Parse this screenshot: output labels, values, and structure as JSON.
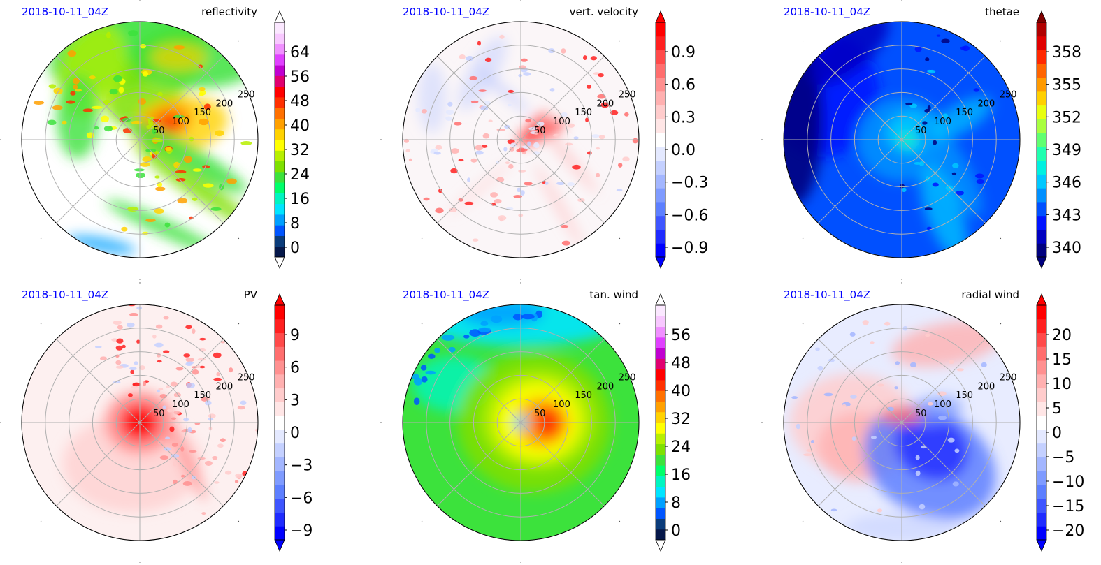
{
  "panels": [
    {
      "date_label": "2018-10-11_04Z",
      "title": "reflectivity",
      "colorbar": {
        "colors": [
          "#06184a",
          "#0b3c7a",
          "#0055ff",
          "#00a0ff",
          "#00e5ff",
          "#00f5c0",
          "#00ff6a",
          "#3ce23c",
          "#7ee000",
          "#b7ef00",
          "#ffff00",
          "#ffd200",
          "#ffa000",
          "#ff7000",
          "#ff3000",
          "#ff0000",
          "#e00070",
          "#c000d0",
          "#e040ff",
          "#f090ff",
          "#f8c8ff",
          "#fbe8ff"
        ],
        "ticks": [
          "0",
          "8",
          "16",
          "24",
          "32",
          "40",
          "48",
          "56",
          "64"
        ],
        "extend_min": true,
        "extend_max": true,
        "min_color": "#ffffff",
        "max_color": "#ffffff"
      },
      "field": {
        "base": "#ffffff",
        "clip_ne": true,
        "blobs": [
          {
            "a": 100,
            "r": 135,
            "rx": 110,
            "ry": 60,
            "rot": 20,
            "color": "#3ce23c",
            "op": 0.9
          },
          {
            "a": 75,
            "r": 95,
            "rx": 90,
            "ry": 45,
            "rot": 45,
            "color": "#7ee000",
            "op": 0.85
          },
          {
            "a": 55,
            "r": 145,
            "rx": 95,
            "ry": 45,
            "rot": 0,
            "color": "#3ce23c",
            "op": 0.85
          },
          {
            "a": 125,
            "r": 120,
            "rx": 70,
            "ry": 45,
            "rot": 70,
            "color": "#b7ef00",
            "op": 0.75
          },
          {
            "a": 20,
            "r": 60,
            "rx": 70,
            "ry": 40,
            "rot": 10,
            "color": "#ffd200",
            "op": 0.8
          },
          {
            "a": 35,
            "r": 45,
            "rx": 40,
            "ry": 25,
            "rot": 20,
            "color": "#ffa000",
            "op": 0.85
          },
          {
            "a": 30,
            "r": 50,
            "rx": 20,
            "ry": 14,
            "rot": 0,
            "color": "#ff3000",
            "op": 0.9
          },
          {
            "a": -20,
            "r": 70,
            "rx": 100,
            "ry": 18,
            "rot": -30,
            "color": "#3ce23c",
            "op": 0.85
          },
          {
            "a": -40,
            "r": 100,
            "rx": 100,
            "ry": 16,
            "rot": -35,
            "color": "#7ee000",
            "op": 0.8
          },
          {
            "a": -75,
            "r": 130,
            "rx": 90,
            "ry": 12,
            "rot": -25,
            "color": "#3ce23c",
            "op": 0.8
          },
          {
            "a": -110,
            "r": 160,
            "rx": 50,
            "ry": 10,
            "rot": -10,
            "color": "#00a0ff",
            "op": 0.8
          },
          {
            "a": 160,
            "r": 95,
            "rx": 30,
            "ry": 60,
            "rot": 0,
            "color": "#3ce23c",
            "op": 0.8
          },
          {
            "a": 65,
            "r": 130,
            "rx": 40,
            "ry": 20,
            "rot": 0,
            "color": "#ffd200",
            "op": 0.7
          }
        ],
        "speckle": {
          "count": 90,
          "rmin": 20,
          "rmax": 165,
          "amin": -100,
          "amax": 175,
          "colors": [
            "#ffd200",
            "#ffa000",
            "#ff3000",
            "#b7ef00",
            "#3ce23c",
            "#ffff00"
          ],
          "size": 5
        }
      }
    },
    {
      "date_label": "2018-10-11_04Z",
      "title": "vert. velocity",
      "colorbar": {
        "colors": [
          "#0000ff",
          "#1f2bff",
          "#3e55ff",
          "#5d7fff",
          "#7f9bff",
          "#a3b6ff",
          "#c4d0ff",
          "#e4e9ff",
          "#ffffff",
          "#ffe6e6",
          "#ffcccc",
          "#ffb0b0",
          "#ff9090",
          "#ff6e6e",
          "#ff4a4a",
          "#ff2020",
          "#ff0000"
        ],
        "ticks": [
          "−0.9",
          "−0.6",
          "−0.3",
          "0.0",
          "0.3",
          "0.6",
          "0.9"
        ],
        "extend_min": true,
        "extend_max": true,
        "min_color": "#0000ff",
        "max_color": "#ff0000"
      },
      "field": {
        "base": "#fbf6f8",
        "clip_ne": false,
        "blobs": [
          {
            "a": 120,
            "r": 110,
            "rx": 60,
            "ry": 20,
            "rot": 60,
            "color": "#c4d0ff",
            "op": 0.55
          },
          {
            "a": 155,
            "r": 140,
            "rx": 20,
            "ry": 50,
            "rot": 0,
            "color": "#c4d0ff",
            "op": 0.5
          },
          {
            "a": 20,
            "r": 30,
            "rx": 35,
            "ry": 10,
            "rot": 20,
            "color": "#ff0000",
            "op": 0.85
          },
          {
            "a": 45,
            "r": 35,
            "rx": 20,
            "ry": 8,
            "rot": 40,
            "color": "#ff4a4a",
            "op": 0.8
          },
          {
            "a": -20,
            "r": 70,
            "rx": 70,
            "ry": 6,
            "rot": -50,
            "color": "#ffb0b0",
            "op": 0.6
          },
          {
            "a": -60,
            "r": 110,
            "rx": 70,
            "ry": 6,
            "rot": -60,
            "color": "#ffb0b0",
            "op": 0.5
          },
          {
            "a": -130,
            "r": 90,
            "rx": 60,
            "ry": 6,
            "rot": 40,
            "color": "#ffcccc",
            "op": 0.5
          },
          {
            "a": 110,
            "r": 75,
            "rx": 50,
            "ry": 6,
            "rot": -40,
            "color": "#a3b6ff",
            "op": 0.5
          }
        ],
        "speckle": {
          "count": 120,
          "rmin": 10,
          "rmax": 165,
          "amin": -180,
          "amax": 180,
          "colors": [
            "#ffb0b0",
            "#ffcccc",
            "#c4d0ff",
            "#ff6e6e",
            "#e4e9ff",
            "#ff2020"
          ],
          "size": 4
        }
      }
    },
    {
      "date_label": "2018-10-11_04Z",
      "title": "thetae",
      "colorbar": {
        "colors": [
          "#00007f",
          "#0000c0",
          "#0014ff",
          "#0050ff",
          "#0090ff",
          "#00c8ff",
          "#00f0e0",
          "#20ffb0",
          "#60ff70",
          "#a8ff40",
          "#e8ff10",
          "#ffd000",
          "#ff9a00",
          "#ff6400",
          "#ff2800",
          "#e00000",
          "#b00000"
        ],
        "ticks": [
          "340",
          "343",
          "346",
          "349",
          "352",
          "355",
          "358"
        ],
        "extend_min": true,
        "extend_max": true,
        "min_color": "#00007f",
        "max_color": "#7f0000"
      },
      "field": {
        "base": "#0050ff",
        "clip_ne": false,
        "blobs": [
          {
            "a": 150,
            "r": 130,
            "rx": 80,
            "ry": 90,
            "rot": 0,
            "color": "#0014ff",
            "op": 0.9
          },
          {
            "a": 170,
            "r": 155,
            "rx": 40,
            "ry": 120,
            "rot": 0,
            "color": "#00007f",
            "op": 0.9
          },
          {
            "a": 120,
            "r": 150,
            "rx": 70,
            "ry": 30,
            "rot": 40,
            "color": "#0000c0",
            "op": 0.85
          },
          {
            "a": 0,
            "r": 0,
            "rx": 65,
            "ry": 60,
            "rot": 0,
            "color": "#0090ff",
            "op": 0.9
          },
          {
            "a": 30,
            "r": 20,
            "rx": 40,
            "ry": 30,
            "rot": 0,
            "color": "#00c8ff",
            "op": 0.9
          },
          {
            "a": -30,
            "r": 80,
            "rx": 80,
            "ry": 25,
            "rot": -60,
            "color": "#0090ff",
            "op": 0.85
          },
          {
            "a": -60,
            "r": 120,
            "rx": 70,
            "ry": 25,
            "rot": -70,
            "color": "#00c8ff",
            "op": 0.75
          },
          {
            "a": 20,
            "r": 90,
            "rx": 50,
            "ry": 20,
            "rot": 30,
            "color": "#00c8ff",
            "op": 0.7
          },
          {
            "a": -5,
            "r": 8,
            "rx": 12,
            "ry": 10,
            "rot": 0,
            "color": "#20ffb0",
            "op": 0.9
          }
        ],
        "speckle": {
          "count": 30,
          "rmin": 40,
          "rmax": 160,
          "amin": -90,
          "amax": 90,
          "colors": [
            "#00007f",
            "#0014ff",
            "#00c8ff"
          ],
          "size": 4
        }
      }
    },
    {
      "date_label": "2018-10-11_04Z",
      "title": "PV",
      "colorbar": {
        "colors": [
          "#0000ff",
          "#1f2bff",
          "#3e55ff",
          "#5d7fff",
          "#7f9bff",
          "#a3b6ff",
          "#c4d0ff",
          "#e4e9ff",
          "#ffffff",
          "#ffe6e6",
          "#ffcccc",
          "#ffb0b0",
          "#ff9090",
          "#ff6e6e",
          "#ff4a4a",
          "#ff2020",
          "#ff0000"
        ],
        "ticks": [
          "−9",
          "−6",
          "−3",
          "0",
          "3",
          "6",
          "9"
        ],
        "extend_min": true,
        "extend_max": true,
        "min_color": "#0000ff",
        "max_color": "#ff0000"
      },
      "field": {
        "base": "#fdf0f0",
        "clip_ne": false,
        "blobs": [
          {
            "a": -100,
            "r": 60,
            "rx": 100,
            "ry": 70,
            "rot": 0,
            "color": "#ffcccc",
            "op": 0.7
          },
          {
            "a": 0,
            "r": 0,
            "rx": 50,
            "ry": 45,
            "rot": 0,
            "color": "#ff9090",
            "op": 0.9
          },
          {
            "a": 0,
            "r": 0,
            "rx": 28,
            "ry": 26,
            "rot": 0,
            "color": "#ff0000",
            "op": 0.95
          },
          {
            "a": -40,
            "r": 90,
            "rx": 8,
            "ry": 60,
            "rot": 25,
            "color": "#ff6e6e",
            "op": 0.6
          }
        ],
        "speckle": {
          "count": 110,
          "rmin": 40,
          "rmax": 170,
          "amin": -60,
          "amax": 120,
          "colors": [
            "#ff9090",
            "#ffcccc",
            "#ff2020",
            "#ffb0b0",
            "#c4d0ff"
          ],
          "size": 4
        }
      }
    },
    {
      "date_label": "2018-10-11_04Z",
      "title": "tan. wind",
      "colorbar": {
        "colors": [
          "#06184a",
          "#0b3c7a",
          "#0055ff",
          "#00a0ff",
          "#00e5ff",
          "#00f5c0",
          "#00ff6a",
          "#3ce23c",
          "#7ee000",
          "#b7ef00",
          "#ffff00",
          "#ffd200",
          "#ffa000",
          "#ff7000",
          "#ff3000",
          "#ff0000",
          "#e00070",
          "#c000d0",
          "#e040ff",
          "#f090ff",
          "#f8c8ff",
          "#fbe8ff"
        ],
        "ticks": [
          "0",
          "8",
          "16",
          "24",
          "32",
          "40",
          "48",
          "56"
        ],
        "extend_min": true,
        "extend_max": true,
        "min_color": "#ffffff",
        "max_color": "#ffffff"
      },
      "field": {
        "base": "#3ce23c",
        "clip_ne": false,
        "blobs": [
          {
            "a": 90,
            "r": 150,
            "rx": 150,
            "ry": 40,
            "rot": 0,
            "color": "#00e5ff",
            "op": 0.9
          },
          {
            "a": 100,
            "r": 160,
            "rx": 60,
            "ry": 20,
            "rot": 0,
            "color": "#00a0ff",
            "op": 0.85
          },
          {
            "a": 150,
            "r": 110,
            "rx": 60,
            "ry": 40,
            "rot": 0,
            "color": "#00f5c0",
            "op": 0.8
          },
          {
            "a": 0,
            "r": 20,
            "rx": 110,
            "ry": 100,
            "rot": 0,
            "color": "#7ee000",
            "op": 0.9
          },
          {
            "a": 10,
            "r": 25,
            "rx": 80,
            "ry": 70,
            "rot": 0,
            "color": "#b7ef00",
            "op": 0.9
          },
          {
            "a": 5,
            "r": 25,
            "rx": 60,
            "ry": 55,
            "rot": 0,
            "color": "#ffff00",
            "op": 0.9
          },
          {
            "a": 0,
            "r": 30,
            "rx": 38,
            "ry": 35,
            "rot": 0,
            "color": "#ffa000",
            "op": 0.9
          },
          {
            "a": 0,
            "r": 38,
            "rx": 20,
            "ry": 22,
            "rot": 0,
            "color": "#ff3000",
            "op": 0.95
          },
          {
            "a": 0,
            "r": 0,
            "rx": 10,
            "ry": 10,
            "rot": 0,
            "color": "#00e5ff",
            "op": 1.0
          },
          {
            "a": 0,
            "r": 0,
            "rx": 4,
            "ry": 4,
            "rot": 0,
            "color": "#0055ff",
            "op": 1.0
          }
        ],
        "speckle": {
          "count": 20,
          "rmin": 140,
          "rmax": 165,
          "amin": 80,
          "amax": 170,
          "colors": [
            "#0055ff",
            "#00a0ff"
          ],
          "size": 6
        }
      }
    },
    {
      "date_label": "2018-10-11_04Z",
      "title": "radial wind",
      "colorbar": {
        "colors": [
          "#0000ff",
          "#1f2bff",
          "#3e55ff",
          "#5d7fff",
          "#7f9bff",
          "#a3b6ff",
          "#c4d0ff",
          "#e4e9ff",
          "#ffffff",
          "#ffe6e6",
          "#ffcccc",
          "#ffb0b0",
          "#ff9090",
          "#ff6e6e",
          "#ff4a4a",
          "#ff2020",
          "#ff0000"
        ],
        "ticks": [
          "−20",
          "−15",
          "−10",
          "−5",
          "0",
          "5",
          "10",
          "15",
          "20"
        ],
        "extend_min": true,
        "extend_max": true,
        "min_color": "#0000ff",
        "max_color": "#ff0000"
      },
      "field": {
        "base": "#e8ecff",
        "clip_ne": false,
        "blobs": [
          {
            "a": 60,
            "r": 130,
            "rx": 80,
            "ry": 30,
            "rot": 10,
            "color": "#ffb0b0",
            "op": 0.8
          },
          {
            "a": 180,
            "r": 70,
            "rx": 90,
            "ry": 70,
            "rot": 0,
            "color": "#ffcccc",
            "op": 0.85
          },
          {
            "a": -150,
            "r": 70,
            "rx": 60,
            "ry": 50,
            "rot": 0,
            "color": "#ffb0b0",
            "op": 0.8
          },
          {
            "a": -55,
            "r": 70,
            "rx": 100,
            "ry": 75,
            "rot": -30,
            "color": "#5d7fff",
            "op": 0.85
          },
          {
            "a": -40,
            "r": 55,
            "rx": 55,
            "ry": 45,
            "rot": -30,
            "color": "#1f2bff",
            "op": 0.8
          },
          {
            "a": 20,
            "r": 50,
            "rx": 40,
            "ry": 20,
            "rot": 10,
            "color": "#7f9bff",
            "op": 0.7
          },
          {
            "a": 90,
            "r": 10,
            "rx": 30,
            "ry": 12,
            "rot": 0,
            "color": "#ff6e6e",
            "op": 0.85
          },
          {
            "a": -90,
            "r": 150,
            "rx": 80,
            "ry": 20,
            "rot": 0,
            "color": "#c4d0ff",
            "op": 0.6
          }
        ],
        "speckle": {
          "count": 40,
          "rmin": 20,
          "rmax": 160,
          "amin": -180,
          "amax": 180,
          "colors": [
            "#c4d0ff",
            "#ffcccc",
            "#a3b6ff"
          ],
          "size": 4
        }
      }
    }
  ],
  "range_ring_labels": [
    "50",
    "100",
    "150",
    "200",
    "250"
  ],
  "grid_color": "#b0b0b0"
}
